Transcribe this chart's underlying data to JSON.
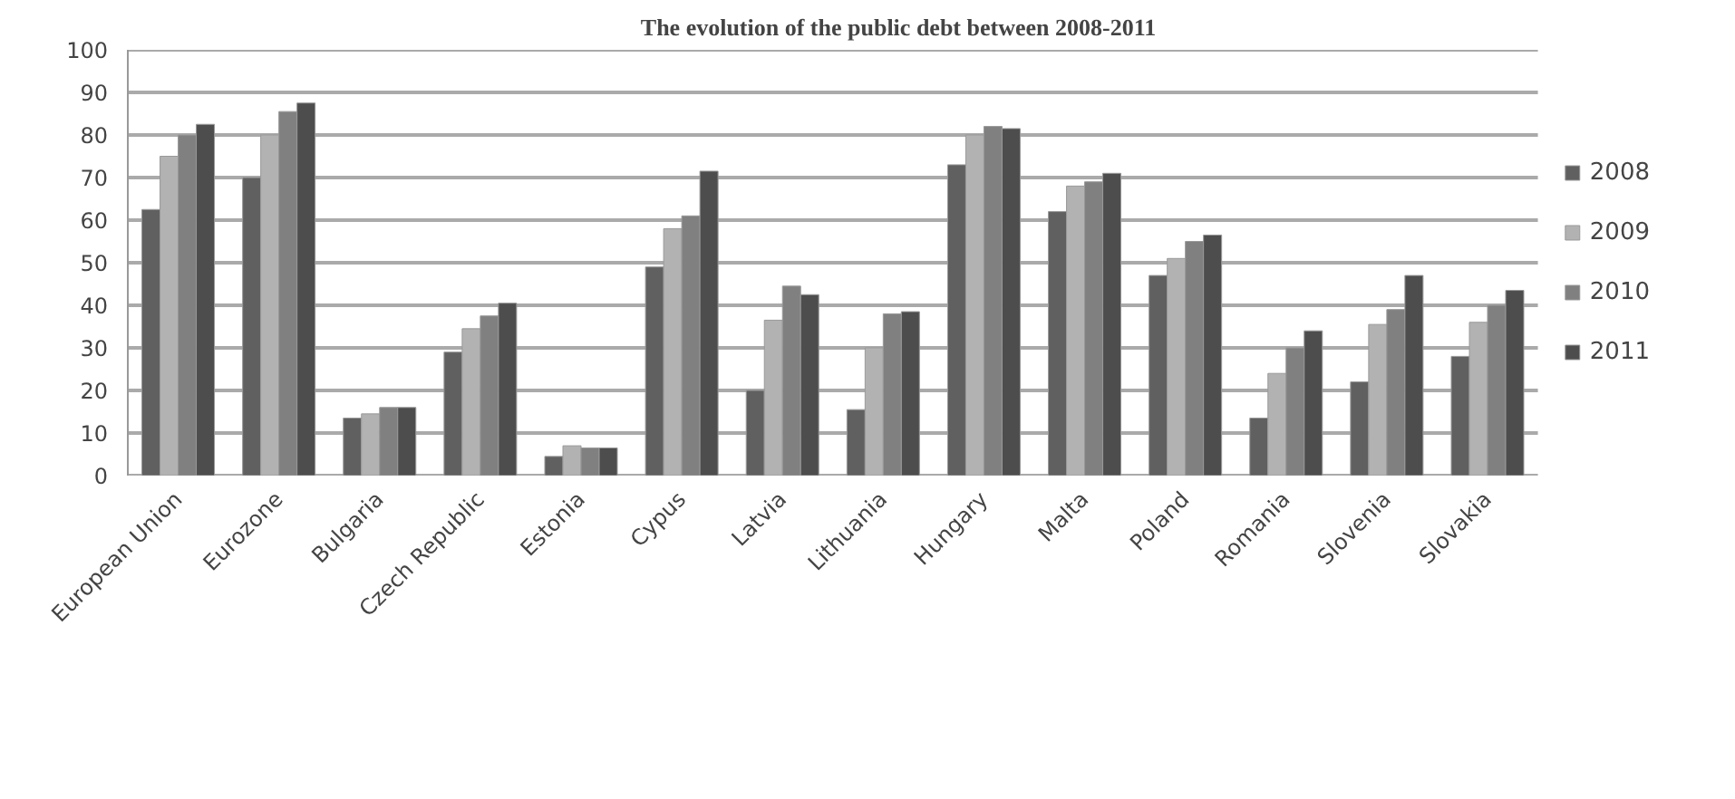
{
  "chart_data": {
    "type": "bar",
    "title": "The evolution of the public debt between 2008-2011",
    "categories": [
      "European Union",
      "Eurozone",
      "Bulgaria",
      "Czech Republic",
      "Estonia",
      "Cypus",
      "Latvia",
      "Lithuania",
      "Hungary",
      "Malta",
      "Poland",
      "Romania",
      "Slovenia",
      "Slovakia"
    ],
    "series": [
      {
        "name": "2008",
        "color": "#606060",
        "values": [
          62.5,
          70,
          13.5,
          29,
          4.5,
          49,
          20,
          15.5,
          73,
          62,
          47,
          13.5,
          22,
          28
        ]
      },
      {
        "name": "2009",
        "color": "#b2b2b2",
        "values": [
          75,
          80,
          14.5,
          34.5,
          7,
          58,
          36.5,
          30,
          80,
          68,
          51,
          24,
          35.5,
          36
        ]
      },
      {
        "name": "2010",
        "color": "#808080",
        "values": [
          80,
          85.5,
          16,
          37.5,
          6.5,
          61,
          44.5,
          38,
          82,
          69,
          55,
          30,
          39,
          40
        ]
      },
      {
        "name": "2011",
        "color": "#4d4d4d",
        "values": [
          82.5,
          87.5,
          16,
          40.5,
          6.5,
          71.5,
          42.5,
          38.5,
          81.5,
          71,
          56.5,
          34,
          47,
          43.5
        ]
      }
    ],
    "ylim": [
      0,
      100
    ],
    "yticks": [
      0,
      10,
      20,
      30,
      40,
      50,
      60,
      70,
      80,
      90,
      100
    ],
    "grid": "y",
    "legend": "right"
  }
}
